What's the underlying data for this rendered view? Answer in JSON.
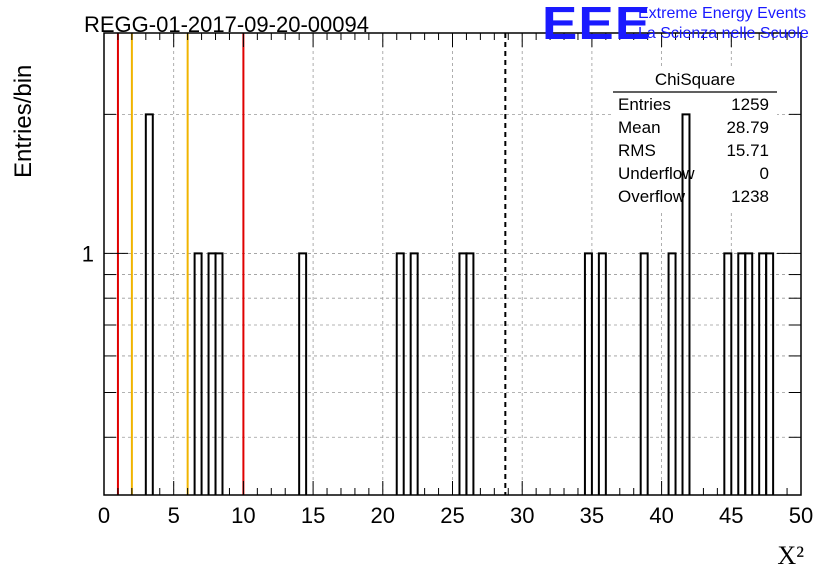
{
  "chart_data": {
    "type": "bar",
    "title": "REGG-01-2017-09-20-00094",
    "xlabel": "X²",
    "ylabel": "Entries/bin",
    "xlim": [
      0,
      50
    ],
    "ylim": [
      0.3,
      3
    ],
    "y_scale": "log",
    "grid": true,
    "x_ticks": [
      "0",
      "5",
      "10",
      "15",
      "20",
      "25",
      "30",
      "35",
      "40",
      "45",
      "50"
    ],
    "y_ticks": [
      "1"
    ],
    "bin_width": 0.5,
    "bins": [
      {
        "x": 3.0,
        "value": 2
      },
      {
        "x": 6.5,
        "value": 1
      },
      {
        "x": 7.5,
        "value": 1
      },
      {
        "x": 8.0,
        "value": 1
      },
      {
        "x": 14.0,
        "value": 1
      },
      {
        "x": 21.0,
        "value": 1
      },
      {
        "x": 22.0,
        "value": 1
      },
      {
        "x": 25.5,
        "value": 1
      },
      {
        "x": 26.0,
        "value": 1
      },
      {
        "x": 34.5,
        "value": 1
      },
      {
        "x": 35.5,
        "value": 1
      },
      {
        "x": 38.5,
        "value": 1
      },
      {
        "x": 40.5,
        "value": 1
      },
      {
        "x": 41.5,
        "value": 2
      },
      {
        "x": 44.5,
        "value": 1
      },
      {
        "x": 45.5,
        "value": 1
      },
      {
        "x": 46.0,
        "value": 1
      },
      {
        "x": 47.0,
        "value": 1
      },
      {
        "x": 47.5,
        "value": 1
      }
    ],
    "vertical_lines": [
      {
        "x": 1,
        "color": "#e00000",
        "style": "solid"
      },
      {
        "x": 2,
        "color": "#f0b400",
        "style": "solid"
      },
      {
        "x": 6,
        "color": "#f0b400",
        "style": "solid"
      },
      {
        "x": 10,
        "color": "#e00000",
        "style": "solid"
      },
      {
        "x": 28.79,
        "color": "#000000",
        "style": "dashed"
      }
    ],
    "stats_box": {
      "title": "ChiSquare",
      "rows": [
        {
          "label": "Entries",
          "value": "1259"
        },
        {
          "label": "Mean",
          "value": "28.79"
        },
        {
          "label": "RMS",
          "value": "15.71"
        },
        {
          "label": "Underflow",
          "value": "0"
        },
        {
          "label": "Overflow",
          "value": "1238"
        }
      ]
    }
  },
  "logo": {
    "mark": "EEE",
    "line1": "Extreme Energy Events",
    "line2": "La Scienza nelle Scuole",
    "color": "#1a1aff"
  }
}
